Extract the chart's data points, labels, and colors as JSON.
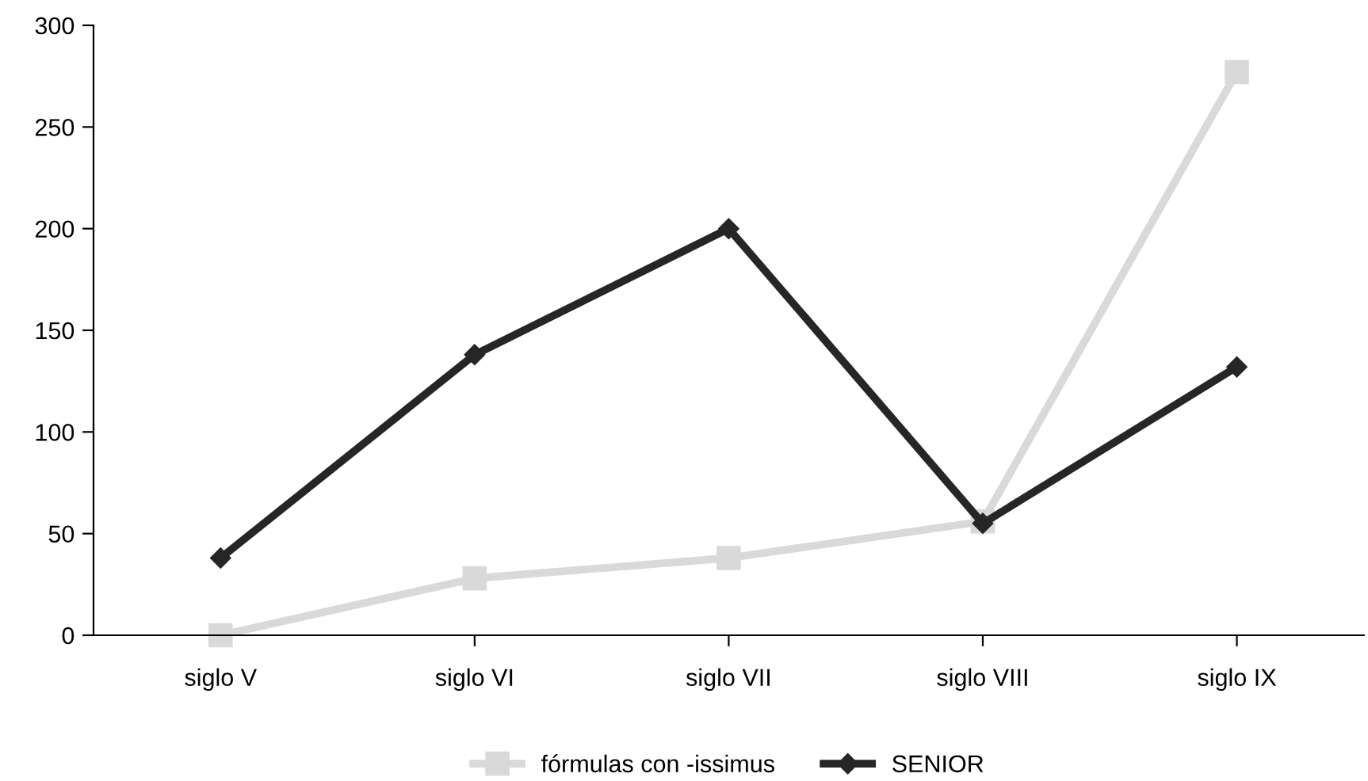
{
  "chart_data": {
    "type": "line",
    "categories": [
      "siglo V",
      "siglo VI",
      "siglo VII",
      "siglo VIII",
      "siglo IX"
    ],
    "series": [
      {
        "name": "fórmulas con -issimus",
        "color": "#d9d9d9",
        "marker": "square",
        "values": [
          0,
          28,
          38,
          56,
          277
        ]
      },
      {
        "name": "SENIOR",
        "color": "#262626",
        "marker": "diamond",
        "values": [
          38,
          138,
          200,
          55,
          132
        ]
      }
    ],
    "ylim": [
      0,
      300
    ],
    "yticks": [
      0,
      50,
      100,
      150,
      200,
      250,
      300
    ],
    "grid": false,
    "legend": "bottom",
    "line_style": "solid"
  }
}
